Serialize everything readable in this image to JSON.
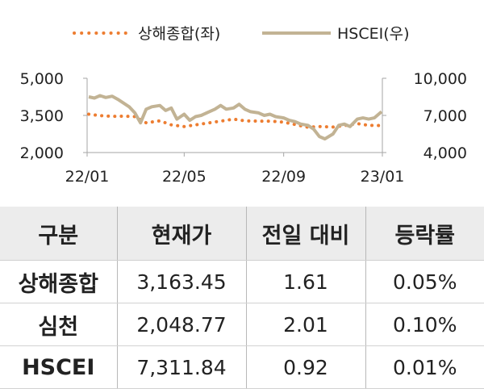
{
  "chart_data": {
    "type": "line",
    "x_ticks": [
      "22/01",
      "22/05",
      "22/09",
      "23/01"
    ],
    "left_axis": {
      "ticks": [
        "5,000",
        "3,500",
        "2,000"
      ],
      "range": [
        2000,
        5000
      ]
    },
    "right_axis": {
      "ticks": [
        "10,000",
        "7,000",
        "4,000"
      ],
      "range": [
        4000,
        10000
      ]
    },
    "series": [
      {
        "name": "상해종합(좌)",
        "axis": "left",
        "style": "dotted",
        "color": "#ed7d31",
        "x": [
          "22/01/03",
          "22/01/17",
          "22/02/01",
          "22/02/15",
          "22/03/01",
          "22/03/15",
          "22/04/01",
          "22/04/15",
          "22/05/01",
          "22/05/15",
          "22/06/01",
          "22/06/15",
          "22/07/01",
          "22/07/15",
          "22/08/01",
          "22/08/15",
          "22/09/01",
          "22/09/15",
          "22/10/01",
          "22/10/15",
          "22/11/01",
          "22/11/15",
          "22/12/01",
          "22/12/15",
          "22/12/31"
        ],
        "y": [
          3550,
          3490,
          3460,
          3470,
          3450,
          3200,
          3280,
          3120,
          3050,
          3120,
          3200,
          3270,
          3350,
          3280,
          3270,
          3270,
          3230,
          3130,
          3020,
          3050,
          3030,
          3090,
          3170,
          3100,
          3090
        ]
      },
      {
        "name": "HSCEI(우)",
        "axis": "right",
        "style": "solid",
        "color": "#c2b394",
        "x": [
          "22/01/03",
          "22/01/10",
          "22/01/17",
          "22/01/24",
          "22/02/01",
          "22/02/08",
          "22/02/15",
          "22/02/22",
          "22/03/01",
          "22/03/08",
          "22/03/15",
          "22/03/22",
          "22/04/01",
          "22/04/08",
          "22/04/15",
          "22/04/22",
          "22/05/01",
          "22/05/08",
          "22/05/15",
          "22/05/22",
          "22/06/01",
          "22/06/08",
          "22/06/15",
          "22/06/22",
          "22/07/01",
          "22/07/08",
          "22/07/15",
          "22/07/22",
          "22/08/01",
          "22/08/08",
          "22/08/15",
          "22/08/22",
          "22/09/01",
          "22/09/08",
          "22/09/15",
          "22/09/22",
          "22/10/01",
          "22/10/08",
          "22/10/15",
          "22/10/22",
          "22/11/01",
          "22/11/08",
          "22/11/15",
          "22/11/22",
          "22/12/01",
          "22/12/08",
          "22/12/15",
          "22/12/22",
          "22/12/31"
        ],
        "y": [
          8500,
          8400,
          8600,
          8450,
          8550,
          8300,
          8000,
          7700,
          7200,
          6400,
          7500,
          7700,
          7800,
          7400,
          7600,
          6700,
          7100,
          6600,
          6900,
          7000,
          7300,
          7500,
          7800,
          7500,
          7600,
          7900,
          7500,
          7300,
          7200,
          7000,
          7100,
          6900,
          6800,
          6600,
          6500,
          6300,
          6200,
          5900,
          5300,
          5100,
          5500,
          6200,
          6300,
          6100,
          6700,
          6800,
          6700,
          6800,
          7300
        ]
      }
    ]
  },
  "table": {
    "headers": [
      "구분",
      "현재가",
      "전일 대비",
      "등락률"
    ],
    "rows": [
      [
        "상해종합",
        "3,163.45",
        "1.61",
        "0.05%"
      ],
      [
        "심천",
        "2,048.77",
        "2.01",
        "0.10%"
      ],
      [
        "HSCEI",
        "7,311.84",
        "0.92",
        "0.01%"
      ]
    ]
  }
}
